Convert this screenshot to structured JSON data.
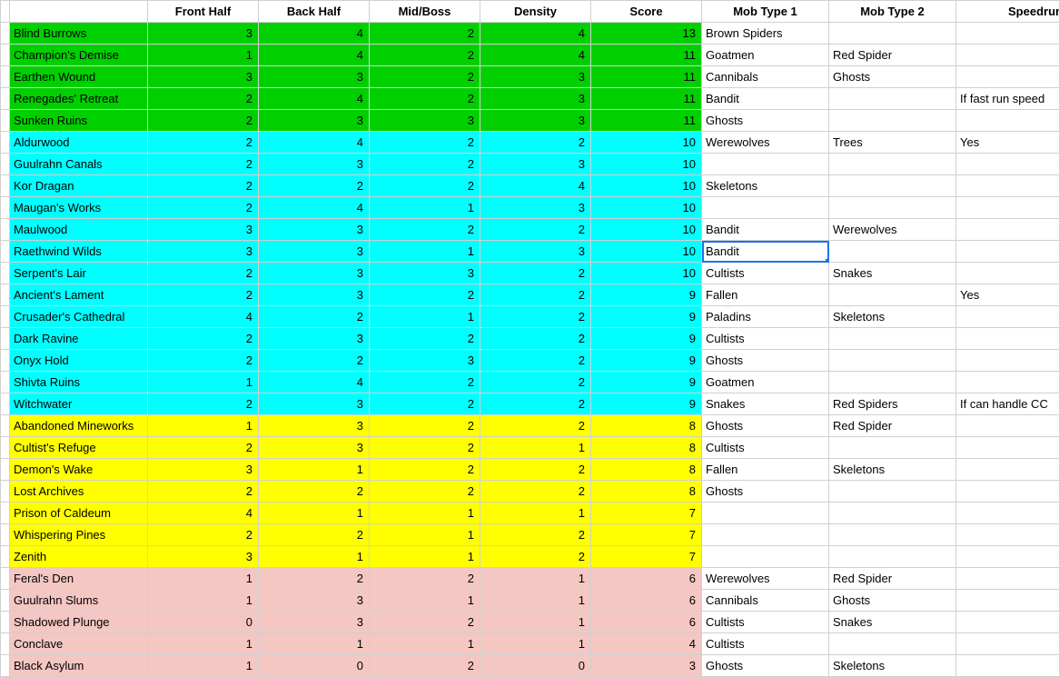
{
  "colors": {
    "green": "#00d000",
    "cyan": "#00ffff",
    "yellow": "#ffff00",
    "pink": "#f4c7c3",
    "white": "#ffffff",
    "selection": "#1a73e8",
    "grid": "#d0d0d0"
  },
  "columns": [
    {
      "key": "name",
      "label": "",
      "type": "txt",
      "width": 152
    },
    {
      "key": "front",
      "label": "Front Half",
      "type": "num",
      "width": 122
    },
    {
      "key": "back",
      "label": "Back Half",
      "type": "num",
      "width": 122
    },
    {
      "key": "mid",
      "label": "Mid/Boss",
      "type": "num",
      "width": 122
    },
    {
      "key": "density",
      "label": "Density",
      "type": "num",
      "width": 122
    },
    {
      "key": "score",
      "label": "Score",
      "type": "num",
      "width": 122,
      "tinted": true
    },
    {
      "key": "mob1",
      "label": "Mob Type 1",
      "type": "txt",
      "width": 140
    },
    {
      "key": "mob2",
      "label": "Mob Type 2",
      "type": "txt",
      "width": 140
    },
    {
      "key": "speedrun",
      "label": "Speedrun",
      "type": "txt",
      "width": 175
    }
  ],
  "selected": {
    "row": 10,
    "col": "mob1"
  },
  "rows": [
    {
      "tier": "green",
      "name": "Blind Burrows",
      "front": 3,
      "back": 4,
      "mid": 2,
      "density": 4,
      "score": 13,
      "mob1": "Brown Spiders",
      "mob2": "",
      "speedrun": ""
    },
    {
      "tier": "green",
      "name": "Champion's Demise",
      "front": 1,
      "back": 4,
      "mid": 2,
      "density": 4,
      "score": 11,
      "mob1": "Goatmen",
      "mob2": "Red Spider",
      "speedrun": ""
    },
    {
      "tier": "green",
      "name": "Earthen Wound",
      "front": 3,
      "back": 3,
      "mid": 2,
      "density": 3,
      "score": 11,
      "mob1": "Cannibals",
      "mob2": "Ghosts",
      "speedrun": ""
    },
    {
      "tier": "green",
      "name": "Renegades' Retreat",
      "front": 2,
      "back": 4,
      "mid": 2,
      "density": 3,
      "score": 11,
      "mob1": "Bandit",
      "mob2": "",
      "speedrun": "If fast run speed"
    },
    {
      "tier": "green",
      "name": "Sunken Ruins",
      "front": 2,
      "back": 3,
      "mid": 3,
      "density": 3,
      "score": 11,
      "mob1": "Ghosts",
      "mob2": "",
      "speedrun": ""
    },
    {
      "tier": "cyan",
      "name": "Aldurwood",
      "front": 2,
      "back": 4,
      "mid": 2,
      "density": 2,
      "score": 10,
      "mob1": "Werewolves",
      "mob2": "Trees",
      "speedrun": "Yes"
    },
    {
      "tier": "cyan",
      "name": "Guulrahn Canals",
      "front": 2,
      "back": 3,
      "mid": 2,
      "density": 3,
      "score": 10,
      "mob1": "",
      "mob2": "",
      "speedrun": ""
    },
    {
      "tier": "cyan",
      "name": "Kor Dragan",
      "front": 2,
      "back": 2,
      "mid": 2,
      "density": 4,
      "score": 10,
      "mob1": "Skeletons",
      "mob2": "",
      "speedrun": ""
    },
    {
      "tier": "cyan",
      "name": "Maugan's Works",
      "front": 2,
      "back": 4,
      "mid": 1,
      "density": 3,
      "score": 10,
      "mob1": "",
      "mob2": "",
      "speedrun": ""
    },
    {
      "tier": "cyan",
      "name": "Maulwood",
      "front": 3,
      "back": 3,
      "mid": 2,
      "density": 2,
      "score": 10,
      "mob1": "Bandit",
      "mob2": "Werewolves",
      "speedrun": ""
    },
    {
      "tier": "cyan",
      "name": "Raethwind Wilds",
      "front": 3,
      "back": 3,
      "mid": 1,
      "density": 3,
      "score": 10,
      "mob1": "Bandit",
      "mob2": "",
      "speedrun": ""
    },
    {
      "tier": "cyan",
      "name": "Serpent's Lair",
      "front": 2,
      "back": 3,
      "mid": 3,
      "density": 2,
      "score": 10,
      "mob1": "Cultists",
      "mob2": "Snakes",
      "speedrun": ""
    },
    {
      "tier": "cyan",
      "name": "Ancient's Lament",
      "front": 2,
      "back": 3,
      "mid": 2,
      "density": 2,
      "score": 9,
      "mob1": "Fallen",
      "mob2": "",
      "speedrun": "Yes"
    },
    {
      "tier": "cyan",
      "name": "Crusader's Cathedral",
      "front": 4,
      "back": 2,
      "mid": 1,
      "density": 2,
      "score": 9,
      "mob1": "Paladins",
      "mob2": "Skeletons",
      "speedrun": ""
    },
    {
      "tier": "cyan",
      "name": "Dark Ravine",
      "front": 2,
      "back": 3,
      "mid": 2,
      "density": 2,
      "score": 9,
      "mob1": "Cultists",
      "mob2": "",
      "speedrun": ""
    },
    {
      "tier": "cyan",
      "name": "Onyx Hold",
      "front": 2,
      "back": 2,
      "mid": 3,
      "density": 2,
      "score": 9,
      "mob1": "Ghosts",
      "mob2": "",
      "speedrun": ""
    },
    {
      "tier": "cyan",
      "name": "Shivta Ruins",
      "front": 1,
      "back": 4,
      "mid": 2,
      "density": 2,
      "score": 9,
      "mob1": "Goatmen",
      "mob2": "",
      "speedrun": ""
    },
    {
      "tier": "cyan",
      "name": "Witchwater",
      "front": 2,
      "back": 3,
      "mid": 2,
      "density": 2,
      "score": 9,
      "mob1": "Snakes",
      "mob2": "Red Spiders",
      "speedrun": "If can handle CC"
    },
    {
      "tier": "yellow",
      "name": "Abandoned Mineworks",
      "front": 1,
      "back": 3,
      "mid": 2,
      "density": 2,
      "score": 8,
      "mob1": "Ghosts",
      "mob2": "Red Spider",
      "speedrun": ""
    },
    {
      "tier": "yellow",
      "name": "Cultist's Refuge",
      "front": 2,
      "back": 3,
      "mid": 2,
      "density": 1,
      "score": 8,
      "mob1": "Cultists",
      "mob2": "",
      "speedrun": ""
    },
    {
      "tier": "yellow",
      "name": "Demon's Wake",
      "front": 3,
      "back": 1,
      "mid": 2,
      "density": 2,
      "score": 8,
      "mob1": "Fallen",
      "mob2": "Skeletons",
      "speedrun": ""
    },
    {
      "tier": "yellow",
      "name": "Lost Archives",
      "front": 2,
      "back": 2,
      "mid": 2,
      "density": 2,
      "score": 8,
      "mob1": "Ghosts",
      "mob2": "",
      "speedrun": ""
    },
    {
      "tier": "yellow",
      "name": "Prison of Caldeum",
      "front": 4,
      "back": 1,
      "mid": 1,
      "density": 1,
      "score": 7,
      "mob1": "",
      "mob2": "",
      "speedrun": ""
    },
    {
      "tier": "yellow",
      "name": "Whispering Pines",
      "front": 2,
      "back": 2,
      "mid": 1,
      "density": 2,
      "score": 7,
      "mob1": "",
      "mob2": "",
      "speedrun": ""
    },
    {
      "tier": "yellow",
      "name": "Zenith",
      "front": 3,
      "back": 1,
      "mid": 1,
      "density": 2,
      "score": 7,
      "mob1": "",
      "mob2": "",
      "speedrun": ""
    },
    {
      "tier": "pink",
      "name": "Feral's Den",
      "front": 1,
      "back": 2,
      "mid": 2,
      "density": 1,
      "score": 6,
      "mob1": "Werewolves",
      "mob2": "Red Spider",
      "speedrun": ""
    },
    {
      "tier": "pink",
      "name": "Guulrahn Slums",
      "front": 1,
      "back": 3,
      "mid": 1,
      "density": 1,
      "score": 6,
      "mob1": "Cannibals",
      "mob2": "Ghosts",
      "speedrun": ""
    },
    {
      "tier": "pink",
      "name": "Shadowed Plunge",
      "front": 0,
      "back": 3,
      "mid": 2,
      "density": 1,
      "score": 6,
      "mob1": "Cultists",
      "mob2": "Snakes",
      "speedrun": ""
    },
    {
      "tier": "pink",
      "name": "Conclave",
      "front": 1,
      "back": 1,
      "mid": 1,
      "density": 1,
      "score": 4,
      "mob1": "Cultists",
      "mob2": "",
      "speedrun": ""
    },
    {
      "tier": "pink",
      "name": "Black Asylum",
      "front": 1,
      "back": 0,
      "mid": 2,
      "density": 0,
      "score": 3,
      "mob1": "Ghosts",
      "mob2": "Skeletons",
      "speedrun": ""
    }
  ]
}
